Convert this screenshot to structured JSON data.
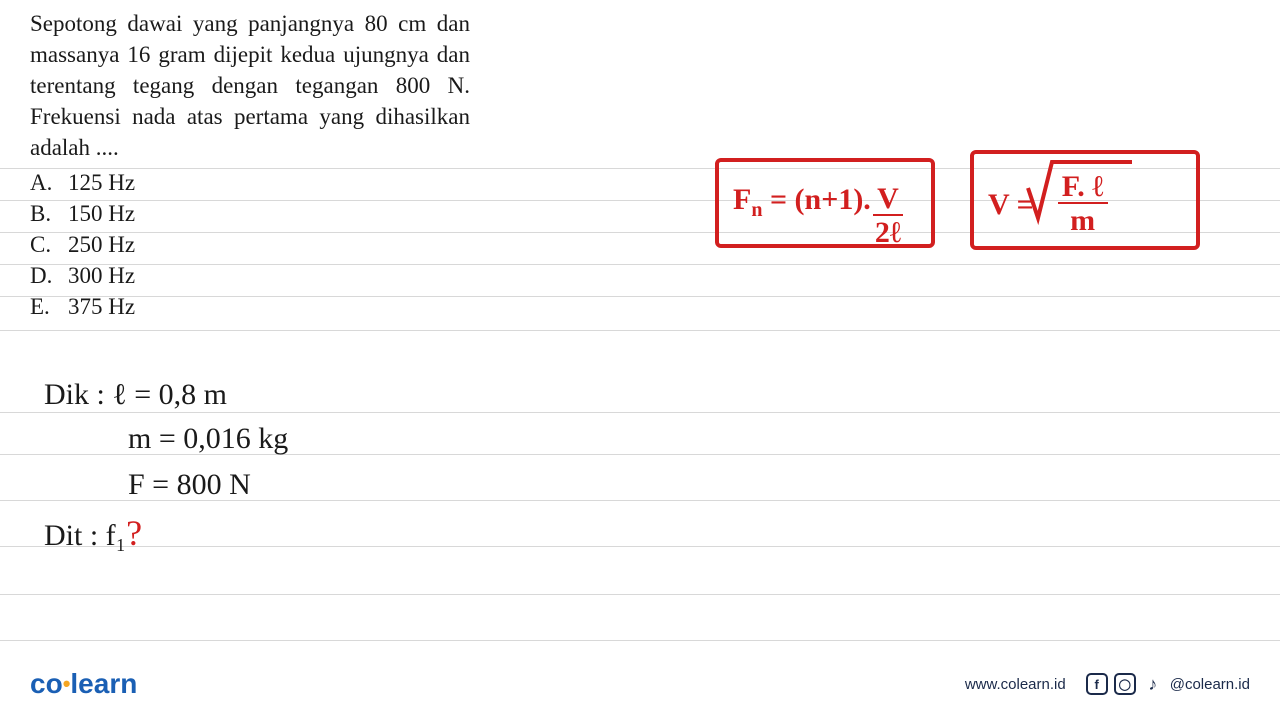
{
  "question": {
    "text": "Sepotong dawai yang panjangnya 80 cm dan massanya 16 gram dijepit kedua ujungnya dan terentang tegang dengan tegangan 800 N. Frekuensi nada atas pertama yang dihasilkan adalah ....",
    "options": [
      {
        "letter": "A.",
        "value": "125 Hz"
      },
      {
        "letter": "B.",
        "value": "150 Hz"
      },
      {
        "letter": "C.",
        "value": "250 Hz"
      },
      {
        "letter": "D.",
        "value": "300 Hz"
      },
      {
        "letter": "E.",
        "value": "375 Hz"
      }
    ]
  },
  "formulas": {
    "box1": {
      "lhs": "F",
      "sub": "n",
      "eq": " = (n+1).",
      "num": "V",
      "den": "2ℓ"
    },
    "box2": {
      "lhs": "V = ",
      "num": "F. ℓ",
      "den": "m"
    }
  },
  "handwriting": {
    "dik_label": "Dik :",
    "l_line": "ℓ = 0,8 m",
    "m_line": "m = 0,016 kg",
    "f_line": "F = 800 N",
    "dit_label": "Dit :",
    "dit_value": "f₁",
    "qmark": "?"
  },
  "footer": {
    "logo_co": "co",
    "logo_learn": "learn",
    "url": "www.colearn.id",
    "handle": "@colearn.id"
  },
  "colors": {
    "red": "#d21f1f",
    "text": "#1a1a1a",
    "rule": "#d8d8d8",
    "brand_blue": "#1a5fb4",
    "brand_orange": "#f5a623",
    "footer_text": "#1b2a4a"
  },
  "ruled_line_positions": [
    168,
    200,
    232,
    264,
    296,
    330,
    412,
    454,
    500,
    546,
    594,
    640
  ]
}
